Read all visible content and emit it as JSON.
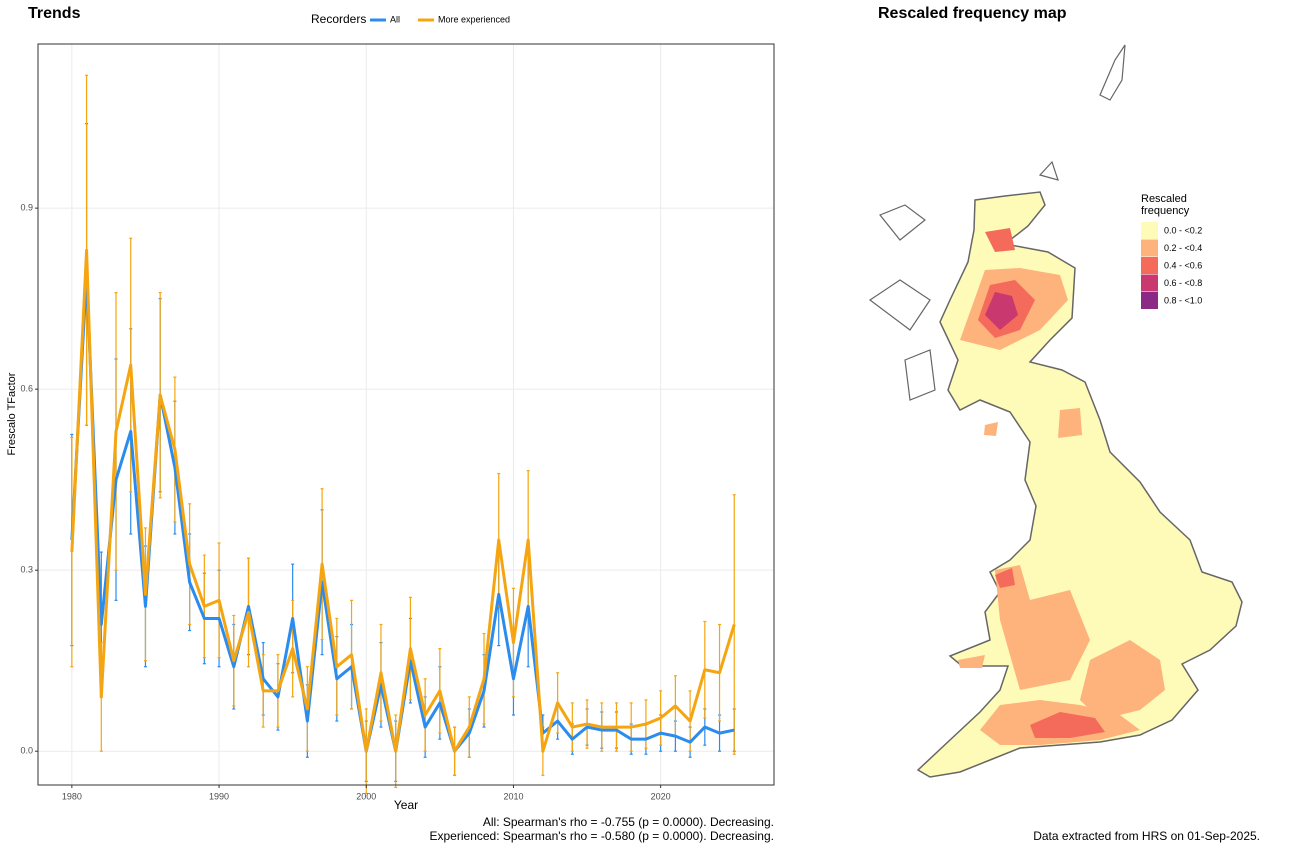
{
  "chart_data": {
    "type": "line",
    "title": "Trends",
    "legend_title": "Recorders",
    "x_label": "Year",
    "y_label": "Frescalo TFactor",
    "x": [
      1980,
      1981,
      1982,
      1983,
      1984,
      1985,
      1986,
      1987,
      1988,
      1989,
      1990,
      1991,
      1992,
      1993,
      1994,
      1995,
      1996,
      1997,
      1998,
      1999,
      2000,
      2001,
      2002,
      2003,
      2004,
      2005,
      2006,
      2007,
      2008,
      2009,
      2010,
      2011,
      2012,
      2013,
      2014,
      2015,
      2016,
      2017,
      2018,
      2019,
      2020,
      2021,
      2022,
      2023,
      2024,
      2025
    ],
    "series": [
      {
        "name": "All",
        "color": "#2b8cee",
        "values": [
          0.35,
          0.79,
          0.21,
          0.45,
          0.53,
          0.24,
          0.59,
          0.47,
          0.28,
          0.22,
          0.22,
          0.14,
          0.24,
          0.12,
          0.09,
          0.22,
          0.05,
          0.28,
          0.12,
          0.14,
          0.0,
          0.11,
          0.0,
          0.15,
          0.04,
          0.08,
          0.0,
          0.03,
          0.1,
          0.26,
          0.12,
          0.24,
          0.03,
          0.05,
          0.02,
          0.04,
          0.035,
          0.035,
          0.02,
          0.02,
          0.03,
          0.025,
          0.015,
          0.04,
          0.03,
          0.035
        ],
        "errors": [
          0.175,
          0.25,
          0.12,
          0.2,
          0.17,
          0.1,
          0.16,
          0.11,
          0.08,
          0.075,
          0.08,
          0.07,
          0.08,
          0.06,
          0.055,
          0.09,
          0.06,
          0.12,
          0.07,
          0.07,
          0.05,
          0.07,
          0.05,
          0.07,
          0.05,
          0.06,
          0.04,
          0.04,
          0.06,
          0.085,
          0.06,
          0.1,
          0.03,
          0.03,
          0.025,
          0.03,
          0.03,
          0.03,
          0.025,
          0.025,
          0.03,
          0.025,
          0.025,
          0.03,
          0.03,
          0.035
        ]
      },
      {
        "name": "More experienced",
        "color": "#f5a511",
        "values": [
          0.33,
          0.83,
          0.09,
          0.53,
          0.64,
          0.26,
          0.59,
          0.5,
          0.31,
          0.24,
          0.25,
          0.15,
          0.23,
          0.1,
          0.1,
          0.17,
          0.07,
          0.31,
          0.14,
          0.16,
          0.0,
          0.13,
          0.0,
          0.17,
          0.06,
          0.1,
          0.0,
          0.04,
          0.12,
          0.35,
          0.18,
          0.35,
          0.0,
          0.08,
          0.04,
          0.045,
          0.04,
          0.04,
          0.04,
          0.045,
          0.055,
          0.075,
          0.05,
          0.135,
          0.13,
          0.21
        ],
        "errors": [
          0.19,
          0.29,
          0.09,
          0.23,
          0.21,
          0.11,
          0.17,
          0.12,
          0.1,
          0.085,
          0.095,
          0.075,
          0.09,
          0.06,
          0.06,
          0.08,
          0.07,
          0.125,
          0.08,
          0.09,
          0.07,
          0.08,
          0.06,
          0.085,
          0.06,
          0.07,
          0.04,
          0.05,
          0.075,
          0.11,
          0.09,
          0.115,
          0.04,
          0.05,
          0.04,
          0.04,
          0.04,
          0.04,
          0.04,
          0.04,
          0.045,
          0.05,
          0.05,
          0.08,
          0.08,
          0.215
        ]
      }
    ],
    "xlim": [
      1977.7,
      2027.7
    ],
    "ylim": [
      -0.056,
      1.172
    ],
    "xticks": [
      1980,
      1990,
      2000,
      2010,
      2020
    ],
    "yticks": [
      {
        "value": 0,
        "label": "0.0"
      },
      0.3,
      0.6,
      0.9
    ],
    "grid": true,
    "legend_position": "top",
    "annotations": [
      "All: Spearman's rho = -0.755 (p = 0.0000). Decreasing.",
      "Experienced: Spearman's rho = -0.580 (p = 0.0000). Decreasing."
    ]
  },
  "map": {
    "title": "Rescaled frequency map",
    "legend_title": [
      "Rescaled",
      "frequency"
    ],
    "legend": [
      {
        "label": "0.0 - <0.2",
        "color": "#fefbb8"
      },
      {
        "label": "0.2 - <0.4",
        "color": "#fdb37b"
      },
      {
        "label": "0.4 - <0.6",
        "color": "#f46b5b"
      },
      {
        "label": "0.6 - <0.8",
        "color": "#c9386f"
      },
      {
        "label": "0.8 - <1.0",
        "color": "#8a2a86"
      }
    ],
    "caption": "Data extracted from HRS on 01-Sep-2025."
  }
}
